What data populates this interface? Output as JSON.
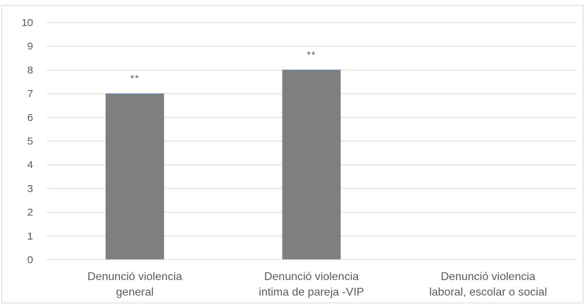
{
  "chart_data": {
    "type": "bar",
    "title": "",
    "xlabel": "",
    "ylabel": "",
    "ylim": [
      0,
      10
    ],
    "yticks": [
      "0",
      "1",
      "2",
      "3",
      "4",
      "5",
      "6",
      "7",
      "8",
      "9",
      "10"
    ],
    "grid": true,
    "categories": [
      [
        "Denunció violencia",
        "general"
      ],
      [
        "Denunció violencia",
        "intima de pareja -VIP"
      ],
      [
        "Denunció violencia",
        "laboral, escolar o social"
      ]
    ],
    "values": [
      7,
      8,
      null
    ],
    "data_labels": [
      "**",
      "**",
      ""
    ],
    "bar_color": "#7f7f7f",
    "grid_color": "#d9d9d9"
  }
}
